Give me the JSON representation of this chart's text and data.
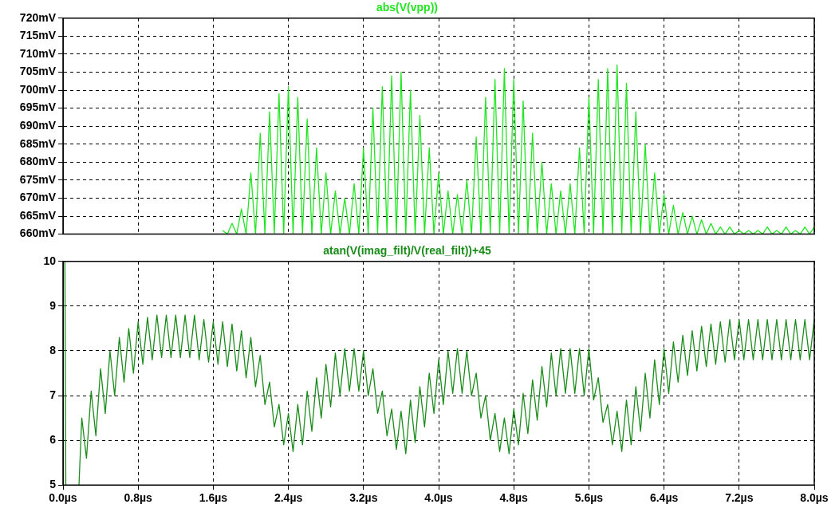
{
  "chart_data": [
    {
      "type": "line",
      "title": "abs(V(vpp))",
      "xlim": [
        0,
        8
      ],
      "xticks": [
        {
          "value": 0,
          "label": null
        },
        {
          "value": 0.8,
          "label": null
        },
        {
          "value": 1.6,
          "label": null
        },
        {
          "value": 2.4,
          "label": null
        },
        {
          "value": 3.2,
          "label": null
        },
        {
          "value": 4,
          "label": null
        },
        {
          "value": 4.8,
          "label": null
        },
        {
          "value": 5.6,
          "label": null
        },
        {
          "value": 6.4,
          "label": null
        },
        {
          "value": 7.2,
          "label": null
        },
        {
          "value": 8,
          "label": null
        }
      ],
      "ylim": [
        660,
        720
      ],
      "yticks": [
        {
          "value": 660,
          "label": "660mV"
        },
        {
          "value": 665,
          "label": "665mV"
        },
        {
          "value": 670,
          "label": "670mV"
        },
        {
          "value": 675,
          "label": "675mV"
        },
        {
          "value": 680,
          "label": "680mV"
        },
        {
          "value": 685,
          "label": "685mV"
        },
        {
          "value": 690,
          "label": "690mV"
        },
        {
          "value": 695,
          "label": "695mV"
        },
        {
          "value": 700,
          "label": "700mV"
        },
        {
          "value": 705,
          "label": "705mV"
        },
        {
          "value": 710,
          "label": "710mV"
        },
        {
          "value": 715,
          "label": "715mV"
        },
        {
          "value": 720,
          "label": "720mV"
        }
      ],
      "tick_labels": "y",
      "grid": true,
      "legend": false,
      "marker": "none",
      "line_style": "solid",
      "series": [
        {
          "color": "#22e622",
          "x": [
            1.7,
            1.75,
            1.8,
            1.85,
            1.9,
            1.95,
            2,
            2.05,
            2.1,
            2.15,
            2.2,
            2.25,
            2.3,
            2.35,
            2.4,
            2.45,
            2.5,
            2.55,
            2.6,
            2.65,
            2.7,
            2.75,
            2.8,
            2.85,
            2.9,
            2.95,
            3,
            3.05,
            3.1,
            3.15,
            3.2,
            3.25,
            3.3,
            3.35,
            3.4,
            3.45,
            3.5,
            3.55,
            3.6,
            3.65,
            3.7,
            3.75,
            3.8,
            3.85,
            3.9,
            3.95,
            4,
            4.05,
            4.1,
            4.15,
            4.2,
            4.25,
            4.3,
            4.35,
            4.4,
            4.45,
            4.5,
            4.55,
            4.6,
            4.65,
            4.7,
            4.75,
            4.8,
            4.85,
            4.9,
            4.95,
            5,
            5.05,
            5.1,
            5.15,
            5.2,
            5.25,
            5.3,
            5.35,
            5.4,
            5.45,
            5.5,
            5.55,
            5.6,
            5.65,
            5.7,
            5.75,
            5.8,
            5.85,
            5.9,
            5.95,
            6,
            6.05,
            6.1,
            6.15,
            6.2,
            6.25,
            6.3,
            6.35,
            6.4,
            6.45,
            6.5,
            6.55,
            6.6,
            6.65,
            6.7,
            6.75,
            6.8,
            6.85,
            6.9,
            6.95,
            7,
            7.05,
            7.1,
            7.15,
            7.2,
            7.25,
            7.3,
            7.35,
            7.4,
            7.45,
            7.5,
            7.55,
            7.6,
            7.65,
            7.7,
            7.75,
            7.8,
            7.85,
            7.9,
            7.95,
            8
          ],
          "values": [
            661,
            660,
            663,
            660,
            667,
            660,
            677,
            660,
            688,
            660,
            694,
            660,
            699,
            660,
            701,
            660,
            698,
            660,
            692,
            660,
            684,
            660,
            677,
            660,
            672,
            660,
            670,
            660,
            674,
            660,
            684,
            660,
            695,
            660,
            701,
            660,
            704,
            660,
            705,
            660,
            700,
            660,
            693,
            660,
            684,
            660,
            677,
            660,
            672,
            660,
            671,
            660,
            675,
            660,
            687,
            660,
            698,
            660,
            703,
            660,
            706,
            660,
            703,
            660,
            697,
            660,
            688,
            660,
            680,
            660,
            674,
            660,
            672,
            660,
            674,
            660,
            684,
            660,
            698,
            660,
            703,
            660,
            706,
            660,
            707,
            660,
            702,
            660,
            694,
            660,
            685,
            660,
            677,
            660,
            671,
            660,
            668,
            660,
            666,
            660,
            665,
            660,
            664,
            660,
            663,
            660,
            662,
            660,
            662,
            660,
            661,
            660,
            661,
            660,
            661,
            660,
            662,
            660,
            661,
            660,
            662,
            660,
            661,
            660,
            662,
            660,
            662
          ]
        }
      ]
    },
    {
      "type": "line",
      "title": "atan(V(imag_filt)/V(real_filt))+45",
      "xlim": [
        0,
        8
      ],
      "xticks": [
        {
          "value": 0,
          "label": "0.0µs"
        },
        {
          "value": 0.8,
          "label": "0.8µs"
        },
        {
          "value": 1.6,
          "label": "1.6µs"
        },
        {
          "value": 2.4,
          "label": "2.4µs"
        },
        {
          "value": 3.2,
          "label": "3.2µs"
        },
        {
          "value": 4,
          "label": "4.0µs"
        },
        {
          "value": 4.8,
          "label": "4.8µs"
        },
        {
          "value": 5.6,
          "label": "5.6µs"
        },
        {
          "value": 6.4,
          "label": "6.4µs"
        },
        {
          "value": 7.2,
          "label": "7.2µs"
        },
        {
          "value": 8,
          "label": "8.0µs"
        }
      ],
      "ylim": [
        5,
        10
      ],
      "yticks": [
        5,
        6,
        7,
        8,
        9,
        10
      ],
      "grid": true,
      "legend": false,
      "marker": "none",
      "line_style": "solid",
      "series": [
        {
          "color": "#1a8c1a",
          "x": [
            0.02,
            0.03,
            0.1,
            0.17,
            0.2,
            0.25,
            0.3,
            0.35,
            0.4,
            0.45,
            0.5,
            0.55,
            0.6,
            0.65,
            0.7,
            0.75,
            0.8,
            0.85,
            0.9,
            0.95,
            1,
            1.05,
            1.1,
            1.15,
            1.2,
            1.25,
            1.3,
            1.35,
            1.4,
            1.45,
            1.5,
            1.55,
            1.6,
            1.65,
            1.7,
            1.75,
            1.8,
            1.85,
            1.9,
            1.95,
            2,
            2.05,
            2.1,
            2.15,
            2.2,
            2.25,
            2.3,
            2.35,
            2.4,
            2.45,
            2.5,
            2.55,
            2.6,
            2.65,
            2.7,
            2.75,
            2.8,
            2.85,
            2.9,
            2.95,
            3,
            3.05,
            3.1,
            3.15,
            3.2,
            3.25,
            3.3,
            3.35,
            3.4,
            3.45,
            3.5,
            3.55,
            3.6,
            3.65,
            3.7,
            3.75,
            3.8,
            3.85,
            3.9,
            3.95,
            4,
            4.05,
            4.1,
            4.15,
            4.2,
            4.25,
            4.3,
            4.35,
            4.4,
            4.45,
            4.5,
            4.55,
            4.6,
            4.65,
            4.7,
            4.75,
            4.8,
            4.85,
            4.9,
            4.95,
            5,
            5.05,
            5.1,
            5.15,
            5.2,
            5.25,
            5.3,
            5.35,
            5.4,
            5.45,
            5.5,
            5.55,
            5.6,
            5.65,
            5.7,
            5.75,
            5.8,
            5.85,
            5.9,
            5.95,
            6,
            6.05,
            6.1,
            6.15,
            6.2,
            6.25,
            6.3,
            6.35,
            6.4,
            6.45,
            6.5,
            6.55,
            6.6,
            6.65,
            6.7,
            6.75,
            6.8,
            6.85,
            6.9,
            6.95,
            7,
            7.05,
            7.1,
            7.15,
            7.2,
            7.25,
            7.3,
            7.35,
            7.4,
            7.45,
            7.5,
            7.55,
            7.6,
            7.65,
            7.7,
            7.75,
            7.8,
            7.85,
            7.9,
            7.95,
            8
          ],
          "values": [
            10,
            5,
            null,
            5,
            6.5,
            5.6,
            7.1,
            6.1,
            7.6,
            6.6,
            8,
            7,
            8.3,
            7.3,
            8.5,
            7.5,
            8.65,
            7.7,
            8.75,
            7.8,
            8.8,
            7.85,
            8.8,
            7.85,
            8.8,
            7.85,
            8.8,
            7.85,
            8.8,
            7.8,
            8.7,
            7.75,
            8.65,
            7.7,
            8.65,
            7.65,
            8.6,
            7.55,
            8.45,
            7.4,
            8.3,
            7.2,
            7.9,
            6.8,
            7.3,
            6.3,
            6.8,
            5.9,
            6.6,
            5.75,
            6.8,
            5.9,
            7.1,
            6.2,
            7.4,
            6.5,
            7.7,
            6.75,
            7.95,
            7,
            8.05,
            7.1,
            8.05,
            7.1,
            8,
            7,
            7.6,
            6.6,
            7.1,
            6.1,
            6.7,
            5.8,
            6.65,
            5.7,
            6.9,
            5.95,
            7.2,
            6.3,
            7.5,
            6.6,
            7.8,
            6.8,
            8,
            7.05,
            8.05,
            7.05,
            8,
            7,
            7.5,
            6.5,
            7,
            6,
            6.6,
            5.75,
            6.5,
            5.7,
            6.7,
            5.9,
            7.05,
            6.15,
            7.35,
            6.45,
            7.65,
            6.75,
            7.95,
            7,
            8.05,
            7.05,
            8.05,
            7.05,
            8.05,
            7,
            8.05,
            6.9,
            7.4,
            6.4,
            6.8,
            5.9,
            6.65,
            5.75,
            6.9,
            5.9,
            7.2,
            6.2,
            7.5,
            6.5,
            7.8,
            6.8,
            8.05,
            7.05,
            8.2,
            7.3,
            8.35,
            7.45,
            8.45,
            7.55,
            8.55,
            7.65,
            8.6,
            7.7,
            8.65,
            7.75,
            8.7,
            7.8,
            8.7,
            7.8,
            8.7,
            7.8,
            8.7,
            7.8,
            8.7,
            7.8,
            8.7,
            7.8,
            8.7,
            7.8,
            8.7,
            7.8,
            8.7,
            7.8,
            8.7
          ]
        }
      ]
    }
  ]
}
